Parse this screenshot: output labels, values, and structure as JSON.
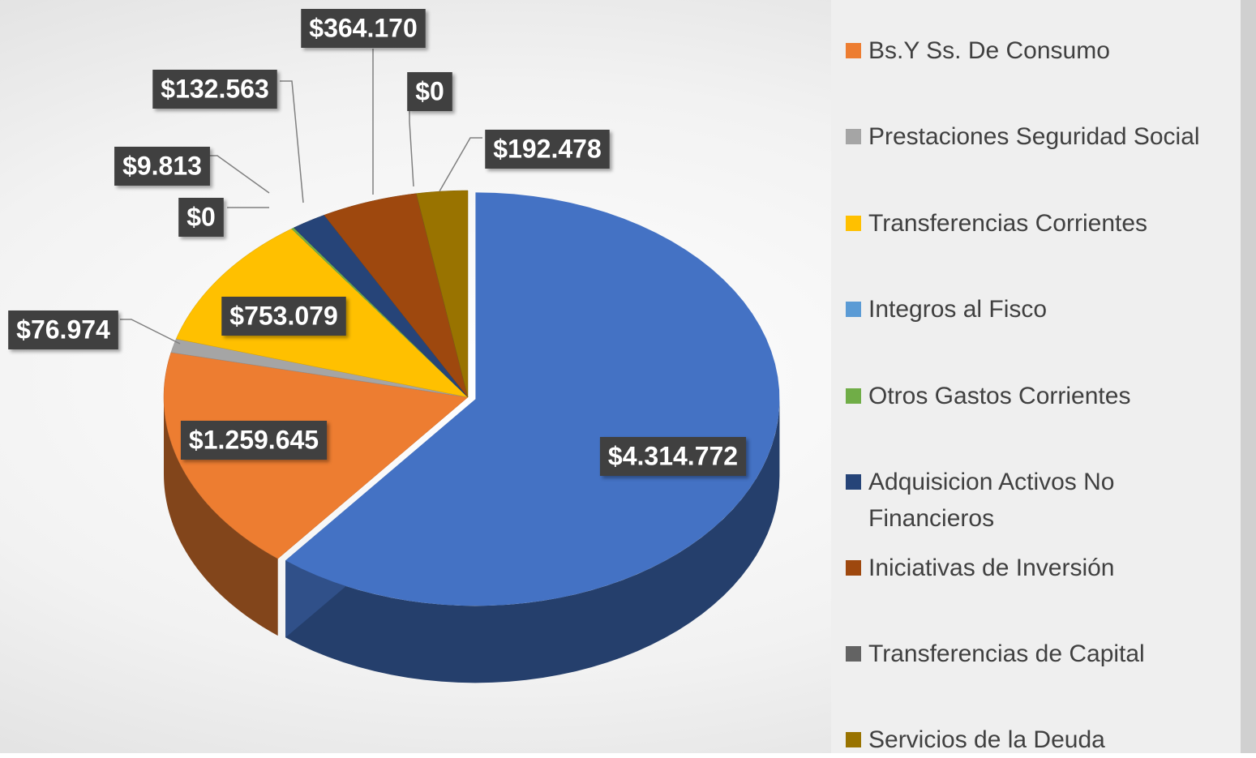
{
  "chart_data": {
    "type": "pie",
    "categories": [
      null,
      "Bs.Y Ss. De Consumo",
      "Prestaciones Seguridad Social",
      "Transferencias Corrientes",
      "Integros al Fisco",
      "Otros Gastos Corrientes",
      "Adquisicion Activos No Financieros",
      "Iniciativas de Inversión",
      "Transferencias de Capital",
      "Servicios de la Deuda"
    ],
    "values": [
      4314772,
      1259645,
      76974,
      753079,
      0,
      9813,
      132563,
      364170,
      0,
      192478
    ],
    "value_labels": [
      "$4.314.772",
      "$1.259.645",
      "$76.974",
      "$753.079",
      "$0",
      "$9.813",
      "$132.563",
      "$364.170",
      "$0",
      "$192.478"
    ],
    "colors": [
      "#4472c4",
      "#ed7d31",
      "#a5a5a5",
      "#ffc000",
      "#5b9bd5",
      "#70ad47",
      "#264478",
      "#9e480e",
      "#636363",
      "#997300"
    ],
    "legend": "right"
  }
}
